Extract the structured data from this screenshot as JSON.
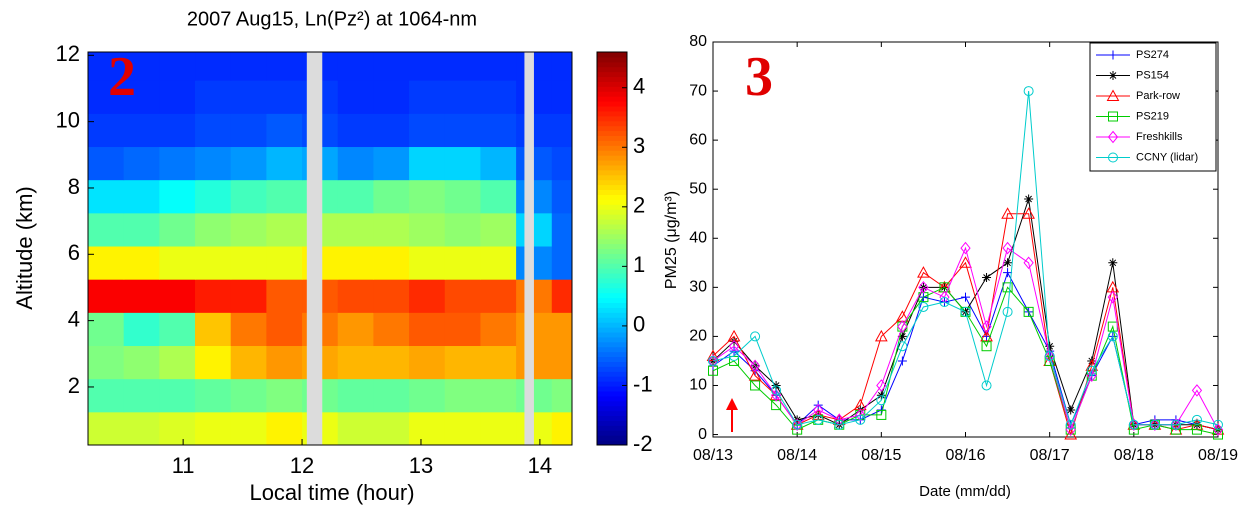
{
  "chart_data": [
    {
      "type": "heatmap",
      "title": "2007 Aug15, Ln(Pz²) at 1064-nm",
      "annotation": "2",
      "x_label": "Local time (hour)",
      "y_label": "Altitude (km)",
      "x": [
        10.35,
        10.65,
        10.95,
        11.25,
        11.55,
        11.85,
        12.15,
        12.45,
        12.75,
        13.05,
        13.35,
        13.65,
        13.95,
        14.25
      ],
      "y": [
        0.75,
        1.75,
        2.75,
        3.75,
        4.75,
        5.75,
        6.75,
        7.75,
        8.75,
        9.75,
        10.75,
        11.75
      ],
      "values": [
        [
          1.8,
          1.8,
          1.9,
          2,
          2,
          2.2,
          2,
          1.8,
          1.8,
          2,
          2,
          2,
          2,
          2.2
        ],
        [
          1,
          1,
          1,
          1.1,
          1.2,
          1.3,
          1.2,
          1.1,
          1.1,
          1.2,
          1.3,
          1.3,
          1.2,
          1.3
        ],
        [
          1.3,
          1.4,
          1.6,
          2.2,
          2.6,
          2.8,
          2.7,
          2.6,
          2.6,
          2.7,
          2.6,
          2.6,
          2.8,
          2.8
        ],
        [
          1.2,
          0.8,
          1,
          2.5,
          3,
          3.2,
          3,
          2.8,
          3,
          3.2,
          3.2,
          3,
          2.8,
          2.8
        ],
        [
          3.8,
          3.8,
          3.8,
          3.6,
          3.6,
          3.2,
          3.2,
          3.3,
          3.3,
          3.5,
          3.3,
          3.3,
          3,
          3.5
        ],
        [
          2.2,
          2.2,
          2,
          2,
          2,
          2,
          2.2,
          2.2,
          2.2,
          2,
          2,
          2,
          -0.3,
          -0.5
        ],
        [
          1,
          1,
          1.2,
          1.4,
          1.5,
          1.6,
          1.6,
          1.6,
          1.6,
          1.5,
          1.4,
          1.5,
          0.2,
          -0.5
        ],
        [
          0.3,
          0.3,
          0.5,
          0.7,
          0.9,
          1,
          1,
          1,
          1.2,
          1.3,
          1.2,
          1,
          -0.3,
          -0.6
        ],
        [
          -0.6,
          -0.5,
          -0.4,
          -0.3,
          -0.2,
          0,
          -0.1,
          -0.3,
          -0.2,
          0.2,
          0.2,
          0,
          -0.6,
          -0.7
        ],
        [
          -0.8,
          -0.8,
          -0.8,
          -0.7,
          -0.7,
          -0.6,
          -0.7,
          -0.8,
          -0.8,
          -0.7,
          -0.7,
          -0.7,
          -0.8,
          -0.8
        ],
        [
          -0.9,
          -0.9,
          -0.9,
          -0.8,
          -0.8,
          -0.8,
          -0.8,
          -0.9,
          -0.9,
          -0.8,
          -0.8,
          -0.8,
          -0.9,
          -0.9
        ],
        [
          -0.9,
          -0.9,
          -0.9,
          -0.9,
          -0.9,
          -0.9,
          -0.9,
          -0.9,
          -0.9,
          -0.9,
          -0.9,
          -0.9,
          -0.9,
          -0.9
        ]
      ],
      "gaps": [
        [
          12.04,
          12.17
        ],
        [
          13.87,
          13.95
        ]
      ],
      "xlim": [
        10.2,
        14.27
      ],
      "xticks": [
        11,
        12,
        13,
        14
      ],
      "ylim": [
        0.25,
        12.1
      ],
      "yticks": [
        2,
        4,
        6,
        8,
        10,
        12
      ],
      "clim": [
        -2,
        4.6
      ],
      "cticks": [
        -2,
        -1,
        0,
        1,
        2,
        3,
        4
      ],
      "colormap": "jet"
    },
    {
      "type": "line",
      "annotation": "3",
      "x_label": "Date (mm/dd)",
      "y_label": "PM25 (μg/m³)",
      "x": [
        13,
        13.25,
        13.5,
        13.75,
        14,
        14.25,
        14.5,
        14.75,
        15,
        15.25,
        15.5,
        15.75,
        16,
        16.25,
        16.5,
        16.75,
        17,
        17.25,
        17.5,
        17.75,
        18,
        18.25,
        18.5,
        18.75,
        19
      ],
      "xlim": [
        13,
        19
      ],
      "xticks": [
        {
          "value": 13,
          "label": "08/13"
        },
        {
          "value": 14,
          "label": "08/14"
        },
        {
          "value": 15,
          "label": "08/15"
        },
        {
          "value": 16,
          "label": "08/16"
        },
        {
          "value": 17,
          "label": "08/17"
        },
        {
          "value": 18,
          "label": "08/18"
        },
        {
          "value": 19,
          "label": "08/19"
        }
      ],
      "ylim": [
        -0.5,
        80
      ],
      "yticks": [
        0,
        10,
        20,
        30,
        40,
        50,
        60,
        70,
        80
      ],
      "legend": "upper-right",
      "series": [
        {
          "name": "PS274",
          "color": "#0000ff",
          "marker": "plus",
          "values": [
            14,
            17,
            13,
            8,
            2,
            6,
            3,
            3,
            5,
            15,
            28,
            27,
            28,
            20,
            33,
            25,
            17,
            2,
            12,
            20,
            2,
            3,
            3,
            2,
            1
          ]
        },
        {
          "name": "PS154",
          "color": "#000000",
          "marker": "star",
          "values": [
            15,
            19,
            14,
            10,
            3,
            4,
            2,
            5,
            8,
            20,
            30,
            30,
            25,
            32,
            35,
            48,
            18,
            5,
            15,
            35,
            2,
            2,
            2,
            2,
            1
          ]
        },
        {
          "name": "Park-row",
          "color": "#ff0000",
          "marker": "triangle",
          "values": [
            16,
            20,
            12,
            8,
            2,
            4,
            3,
            6,
            20,
            24,
            33,
            30,
            35,
            20,
            45,
            45,
            15,
            0,
            14,
            30,
            2,
            2,
            1,
            2,
            1
          ]
        },
        {
          "name": "PS219",
          "color": "#00cc00",
          "marker": "square",
          "values": [
            13,
            15,
            10,
            6,
            1,
            3,
            2,
            4,
            4,
            22,
            28,
            30,
            25,
            18,
            30,
            25,
            15,
            1,
            12,
            22,
            1,
            2,
            1,
            1,
            0
          ]
        },
        {
          "name": "Freshkills",
          "color": "#ff00ff",
          "marker": "diamond",
          "values": [
            15,
            18,
            14,
            8,
            2,
            5,
            3,
            4,
            10,
            22,
            30,
            28,
            38,
            22,
            38,
            35,
            16,
            1,
            12,
            28,
            2,
            2,
            2,
            9,
            1
          ]
        },
        {
          "name": "CCNY (lidar)",
          "color": "#00cccc",
          "marker": "circle",
          "values": [
            15,
            16,
            20,
            9,
            2,
            3,
            2,
            3,
            7,
            18,
            26,
            27,
            25,
            10,
            25,
            70,
            16,
            2,
            13,
            20,
            2,
            2,
            2,
            3,
            2
          ]
        }
      ]
    }
  ]
}
